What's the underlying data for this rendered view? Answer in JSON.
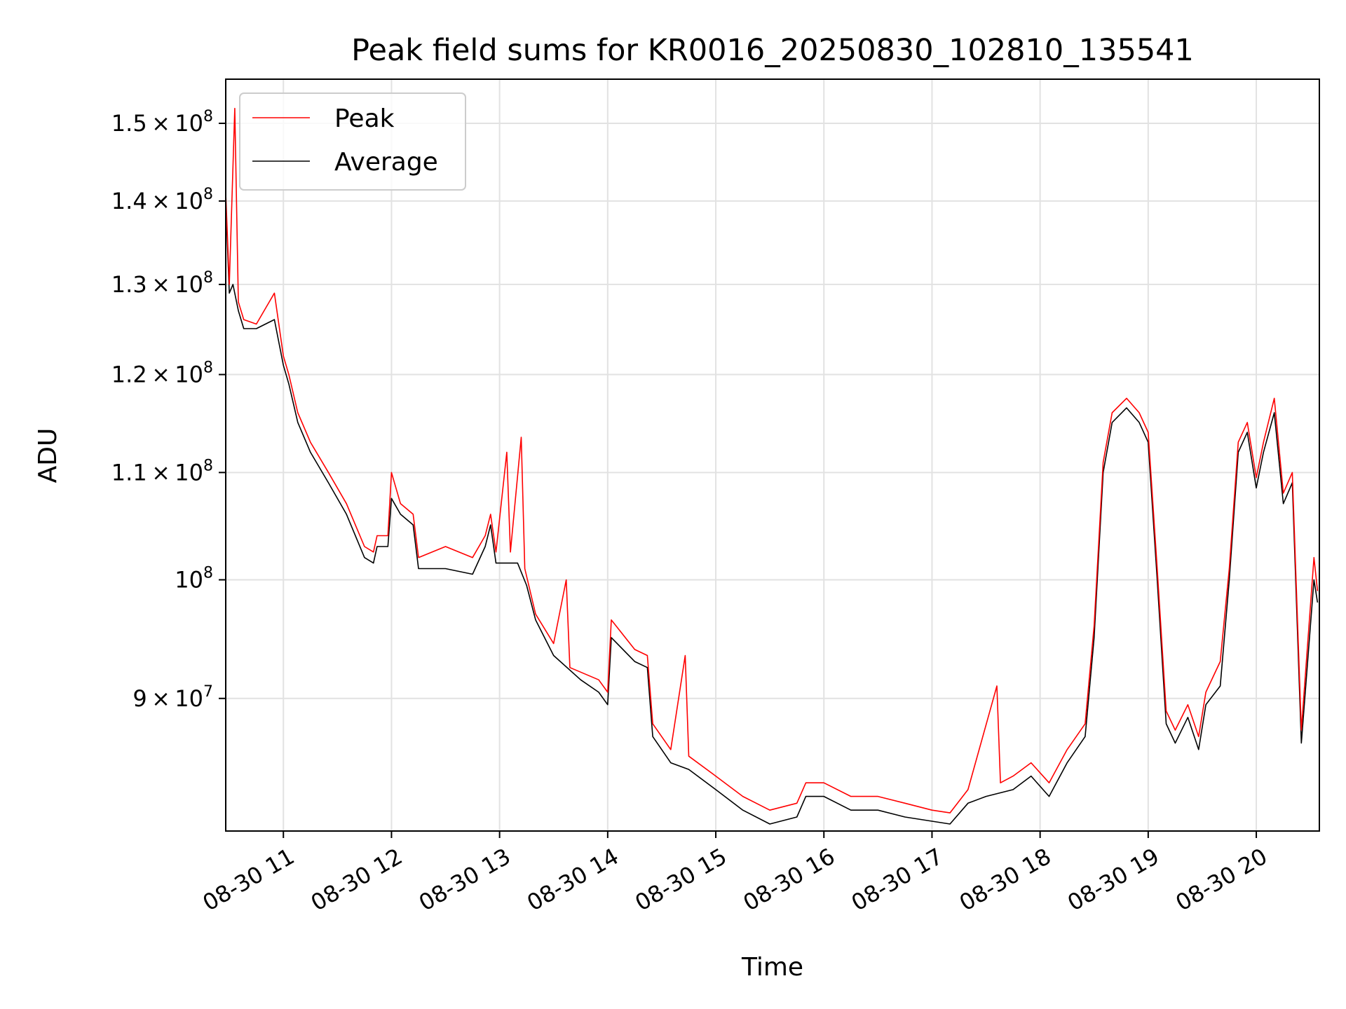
{
  "chart_data": {
    "type": "line",
    "title": "Peak field sums for KR0016_20250830_102810_135541",
    "xlabel": "Time",
    "ylabel": "ADU",
    "x_range": [
      "2025-08-30 10:28",
      "2025-08-30 20:35"
    ],
    "ylim": [
      80000000,
      156000000
    ],
    "yscale": "log",
    "grid": true,
    "legend": {
      "placement": "upper-left",
      "entries": [
        {
          "name": "Peak",
          "color": "#ff0000"
        },
        {
          "name": "Average",
          "color": "#000000"
        }
      ]
    },
    "x_ticks": [
      {
        "x": "2025-08-30 11:00",
        "label": "08-30 11"
      },
      {
        "x": "2025-08-30 12:00",
        "label": "08-30 12"
      },
      {
        "x": "2025-08-30 13:00",
        "label": "08-30 13"
      },
      {
        "x": "2025-08-30 14:00",
        "label": "08-30 14"
      },
      {
        "x": "2025-08-30 15:00",
        "label": "08-30 15"
      },
      {
        "x": "2025-08-30 16:00",
        "label": "08-30 16"
      },
      {
        "x": "2025-08-30 17:00",
        "label": "08-30 17"
      },
      {
        "x": "2025-08-30 18:00",
        "label": "08-30 18"
      },
      {
        "x": "2025-08-30 19:00",
        "label": "08-30 19"
      },
      {
        "x": "2025-08-30 20:00",
        "label": "08-30 20"
      }
    ],
    "y_ticks": [
      {
        "value": 90000000,
        "mantissa": "9",
        "exponent": "7"
      },
      {
        "value": 100000000,
        "mantissa": "",
        "exponent": "8"
      },
      {
        "value": 110000000,
        "mantissa": "1.1",
        "exponent": "8"
      },
      {
        "value": 120000000,
        "mantissa": "1.2",
        "exponent": "8"
      },
      {
        "value": 130000000,
        "mantissa": "1.3",
        "exponent": "8"
      },
      {
        "value": 140000000,
        "mantissa": "1.4",
        "exponent": "8"
      },
      {
        "value": 150000000,
        "mantissa": "1.5",
        "exponent": "8"
      }
    ],
    "series": [
      {
        "name": "Average",
        "color": "#000000",
        "points": [
          [
            "2025-08-30 10:28",
            140000000.0
          ],
          [
            "2025-08-30 10:30",
            129000000.0
          ],
          [
            "2025-08-30 10:32",
            130000000.0
          ],
          [
            "2025-08-30 10:35",
            127000000.0
          ],
          [
            "2025-08-30 10:38",
            125000000.0
          ],
          [
            "2025-08-30 10:45",
            125000000.0
          ],
          [
            "2025-08-30 10:55",
            126000000.0
          ],
          [
            "2025-08-30 11:00",
            121000000.0
          ],
          [
            "2025-08-30 11:03",
            119000000.0
          ],
          [
            "2025-08-30 11:08",
            115000000.0
          ],
          [
            "2025-08-30 11:15",
            112000000.0
          ],
          [
            "2025-08-30 11:25",
            109000000.0
          ],
          [
            "2025-08-30 11:35",
            106000000.0
          ],
          [
            "2025-08-30 11:45",
            102000000.0
          ],
          [
            "2025-08-30 11:50",
            101500000.0
          ],
          [
            "2025-08-30 11:52",
            103000000.0
          ],
          [
            "2025-08-30 11:58",
            103000000.0
          ],
          [
            "2025-08-30 12:00",
            107500000.0
          ],
          [
            "2025-08-30 12:05",
            106000000.0
          ],
          [
            "2025-08-30 12:12",
            105000000.0
          ],
          [
            "2025-08-30 12:15",
            101000000.0
          ],
          [
            "2025-08-30 12:30",
            101000000.0
          ],
          [
            "2025-08-30 12:45",
            100500000.0
          ],
          [
            "2025-08-30 12:52",
            103000000.0
          ],
          [
            "2025-08-30 12:55",
            105000000.0
          ],
          [
            "2025-08-30 12:58",
            101500000.0
          ],
          [
            "2025-08-30 13:10",
            101500000.0
          ],
          [
            "2025-08-30 13:15",
            99500000.0
          ],
          [
            "2025-08-30 13:20",
            96500000.0
          ],
          [
            "2025-08-30 13:30",
            93500000.0
          ],
          [
            "2025-08-30 13:45",
            91500000.0
          ],
          [
            "2025-08-30 13:55",
            90500000.0
          ],
          [
            "2025-08-30 14:00",
            89500000.0
          ],
          [
            "2025-08-30 14:02",
            95000000.0
          ],
          [
            "2025-08-30 14:15",
            93000000.0
          ],
          [
            "2025-08-30 14:22",
            92500000.0
          ],
          [
            "2025-08-30 14:25",
            87000000.0
          ],
          [
            "2025-08-30 14:35",
            85000000.0
          ],
          [
            "2025-08-30 14:45",
            84500000.0
          ],
          [
            "2025-08-30 15:00",
            83000000.0
          ],
          [
            "2025-08-30 15:15",
            81500000.0
          ],
          [
            "2025-08-30 15:30",
            80500000.0
          ],
          [
            "2025-08-30 15:45",
            81000000.0
          ],
          [
            "2025-08-30 15:50",
            82500000.0
          ],
          [
            "2025-08-30 16:00",
            82500000.0
          ],
          [
            "2025-08-30 16:15",
            81500000.0
          ],
          [
            "2025-08-30 16:30",
            81500000.0
          ],
          [
            "2025-08-30 16:45",
            81000000.0
          ],
          [
            "2025-08-30 17:00",
            80700000.0
          ],
          [
            "2025-08-30 17:10",
            80500000.0
          ],
          [
            "2025-08-30 17:20",
            82000000.0
          ],
          [
            "2025-08-30 17:30",
            82500000.0
          ],
          [
            "2025-08-30 17:45",
            83000000.0
          ],
          [
            "2025-08-30 17:55",
            84000000.0
          ],
          [
            "2025-08-30 18:05",
            82500000.0
          ],
          [
            "2025-08-30 18:15",
            85000000.0
          ],
          [
            "2025-08-30 18:25",
            87000000.0
          ],
          [
            "2025-08-30 18:30",
            95000000.0
          ],
          [
            "2025-08-30 18:35",
            110000000.0
          ],
          [
            "2025-08-30 18:40",
            115000000.0
          ],
          [
            "2025-08-30 18:48",
            116500000.0
          ],
          [
            "2025-08-30 18:55",
            115000000.0
          ],
          [
            "2025-08-30 19:00",
            113000000.0
          ],
          [
            "2025-08-30 19:05",
            100000000.0
          ],
          [
            "2025-08-30 19:10",
            88000000.0
          ],
          [
            "2025-08-30 19:15",
            86500000.0
          ],
          [
            "2025-08-30 19:22",
            88500000.0
          ],
          [
            "2025-08-30 19:28",
            86000000.0
          ],
          [
            "2025-08-30 19:32",
            89500000.0
          ],
          [
            "2025-08-30 19:40",
            91000000.0
          ],
          [
            "2025-08-30 19:45",
            100000000.0
          ],
          [
            "2025-08-30 19:50",
            112000000.0
          ],
          [
            "2025-08-30 19:55",
            114000000.0
          ],
          [
            "2025-08-30 20:00",
            108500000.0
          ],
          [
            "2025-08-30 20:04",
            112000000.0
          ],
          [
            "2025-08-30 20:10",
            116000000.0
          ],
          [
            "2025-08-30 20:15",
            107000000.0
          ],
          [
            "2025-08-30 20:20",
            109000000.0
          ],
          [
            "2025-08-30 20:25",
            86500000.0
          ],
          [
            "2025-08-30 20:32",
            100000000.0
          ],
          [
            "2025-08-30 20:34",
            98000000.0
          ]
        ]
      },
      {
        "name": "Peak",
        "color": "#ff0000",
        "points": [
          [
            "2025-08-30 10:28",
            141000000.0
          ],
          [
            "2025-08-30 10:30",
            130000000.0
          ],
          [
            "2025-08-30 10:33",
            152000000.0
          ],
          [
            "2025-08-30 10:35",
            128000000.0
          ],
          [
            "2025-08-30 10:38",
            126000000.0
          ],
          [
            "2025-08-30 10:45",
            125500000.0
          ],
          [
            "2025-08-30 10:55",
            129000000.0
          ],
          [
            "2025-08-30 11:00",
            122000000.0
          ],
          [
            "2025-08-30 11:03",
            120000000.0
          ],
          [
            "2025-08-30 11:08",
            116000000.0
          ],
          [
            "2025-08-30 11:15",
            113000000.0
          ],
          [
            "2025-08-30 11:25",
            110000000.0
          ],
          [
            "2025-08-30 11:35",
            107000000.0
          ],
          [
            "2025-08-30 11:45",
            103000000.0
          ],
          [
            "2025-08-30 11:50",
            102500000.0
          ],
          [
            "2025-08-30 11:52",
            104000000.0
          ],
          [
            "2025-08-30 11:58",
            104000000.0
          ],
          [
            "2025-08-30 12:00",
            110000000.0
          ],
          [
            "2025-08-30 12:05",
            107000000.0
          ],
          [
            "2025-08-30 12:12",
            106000000.0
          ],
          [
            "2025-08-30 12:15",
            102000000.0
          ],
          [
            "2025-08-30 12:30",
            103000000.0
          ],
          [
            "2025-08-30 12:45",
            102000000.0
          ],
          [
            "2025-08-30 12:52",
            104000000.0
          ],
          [
            "2025-08-30 12:55",
            106000000.0
          ],
          [
            "2025-08-30 12:58",
            102500000.0
          ],
          [
            "2025-08-30 13:04",
            112000000.0
          ],
          [
            "2025-08-30 13:06",
            102500000.0
          ],
          [
            "2025-08-30 13:12",
            113500000.0
          ],
          [
            "2025-08-30 13:14",
            101000000.0
          ],
          [
            "2025-08-30 13:20",
            97000000.0
          ],
          [
            "2025-08-30 13:30",
            94500000.0
          ],
          [
            "2025-08-30 13:37",
            100000000.0
          ],
          [
            "2025-08-30 13:39",
            92500000.0
          ],
          [
            "2025-08-30 13:55",
            91500000.0
          ],
          [
            "2025-08-30 14:00",
            90500000.0
          ],
          [
            "2025-08-30 14:02",
            96500000.0
          ],
          [
            "2025-08-30 14:15",
            94000000.0
          ],
          [
            "2025-08-30 14:22",
            93500000.0
          ],
          [
            "2025-08-30 14:25",
            88000000.0
          ],
          [
            "2025-08-30 14:35",
            86000000.0
          ],
          [
            "2025-08-30 14:43",
            93500000.0
          ],
          [
            "2025-08-30 14:45",
            85500000.0
          ],
          [
            "2025-08-30 15:00",
            84000000.0
          ],
          [
            "2025-08-30 15:15",
            82500000.0
          ],
          [
            "2025-08-30 15:30",
            81500000.0
          ],
          [
            "2025-08-30 15:45",
            82000000.0
          ],
          [
            "2025-08-30 15:50",
            83500000.0
          ],
          [
            "2025-08-30 16:00",
            83500000.0
          ],
          [
            "2025-08-30 16:15",
            82500000.0
          ],
          [
            "2025-08-30 16:30",
            82500000.0
          ],
          [
            "2025-08-30 16:45",
            82000000.0
          ],
          [
            "2025-08-30 17:00",
            81500000.0
          ],
          [
            "2025-08-30 17:10",
            81300000.0
          ],
          [
            "2025-08-30 17:20",
            83000000.0
          ],
          [
            "2025-08-30 17:36",
            91000000.0
          ],
          [
            "2025-08-30 17:38",
            83500000.0
          ],
          [
            "2025-08-30 17:45",
            84000000.0
          ],
          [
            "2025-08-30 17:55",
            85000000.0
          ],
          [
            "2025-08-30 18:05",
            83500000.0
          ],
          [
            "2025-08-30 18:15",
            86000000.0
          ],
          [
            "2025-08-30 18:25",
            88000000.0
          ],
          [
            "2025-08-30 18:30",
            96000000.0
          ],
          [
            "2025-08-30 18:35",
            111000000.0
          ],
          [
            "2025-08-30 18:40",
            116000000.0
          ],
          [
            "2025-08-30 18:48",
            117500000.0
          ],
          [
            "2025-08-30 18:55",
            116000000.0
          ],
          [
            "2025-08-30 19:00",
            114000000.0
          ],
          [
            "2025-08-30 19:05",
            101000000.0
          ],
          [
            "2025-08-30 19:10",
            89000000.0
          ],
          [
            "2025-08-30 19:15",
            87500000.0
          ],
          [
            "2025-08-30 19:22",
            89500000.0
          ],
          [
            "2025-08-30 19:28",
            87000000.0
          ],
          [
            "2025-08-30 19:32",
            90500000.0
          ],
          [
            "2025-08-30 19:40",
            93000000.0
          ],
          [
            "2025-08-30 19:45",
            101000000.0
          ],
          [
            "2025-08-30 19:50",
            113000000.0
          ],
          [
            "2025-08-30 19:55",
            115000000.0
          ],
          [
            "2025-08-30 20:00",
            109500000.0
          ],
          [
            "2025-08-30 20:04",
            113000000.0
          ],
          [
            "2025-08-30 20:10",
            117500000.0
          ],
          [
            "2025-08-30 20:15",
            108000000.0
          ],
          [
            "2025-08-30 20:20",
            110000000.0
          ],
          [
            "2025-08-30 20:25",
            87500000.0
          ],
          [
            "2025-08-30 20:32",
            102000000.0
          ],
          [
            "2025-08-30 20:34",
            99000000.0
          ]
        ]
      }
    ]
  }
}
